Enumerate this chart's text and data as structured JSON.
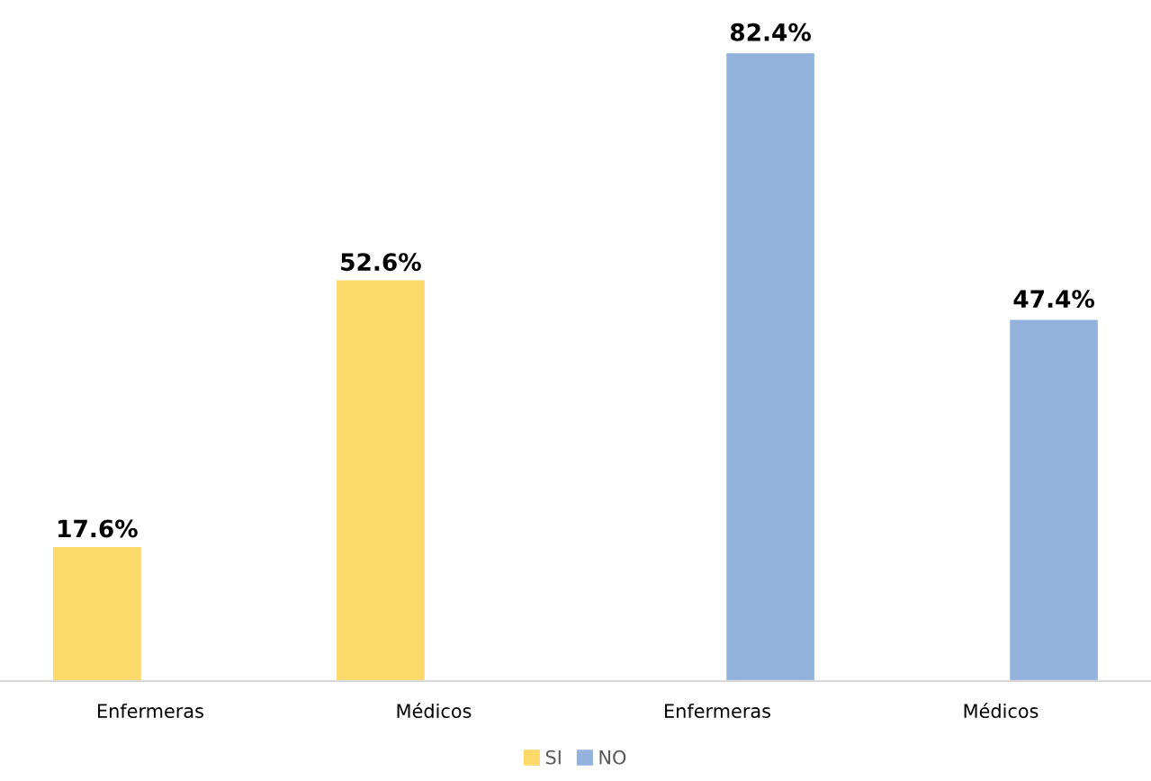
{
  "chart_data": {
    "type": "bar",
    "categories": [
      "Enfermeras",
      "Médicos",
      "Enfermeras",
      "Médicos"
    ],
    "series": [
      {
        "name": "SI",
        "color": "#fdd96a",
        "values": [
          17.6,
          52.6,
          null,
          null
        ],
        "value_labels": [
          "17.6%",
          "52.6%",
          null,
          null
        ]
      },
      {
        "name": "NO",
        "color": "#93b3de",
        "values": [
          null,
          null,
          82.4,
          47.4
        ],
        "value_labels": [
          null,
          null,
          "82.4%",
          "47.4%"
        ]
      }
    ],
    "legend": "bottom",
    "grid": false
  }
}
